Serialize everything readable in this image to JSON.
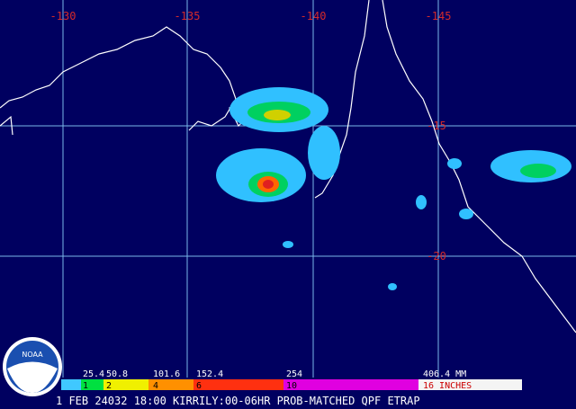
{
  "map": {
    "longitude_labels": [
      "-130",
      "-135",
      "-140",
      "-145"
    ],
    "latitude_labels": [
      "-15",
      "-20"
    ]
  },
  "legend": {
    "mm_labels": [
      "25.4",
      "50.8",
      "101.6",
      "152.4",
      "254",
      "406.4 MM"
    ],
    "inch_labels": [
      "1",
      "2",
      "4",
      "6",
      "10",
      "16 INCHES"
    ]
  },
  "logo": {
    "text": "NOAA"
  },
  "caption": "1 FEB 24032 18:00 KIRRILY:00-06HR PROB-MATCHED QPF ETRAP"
}
